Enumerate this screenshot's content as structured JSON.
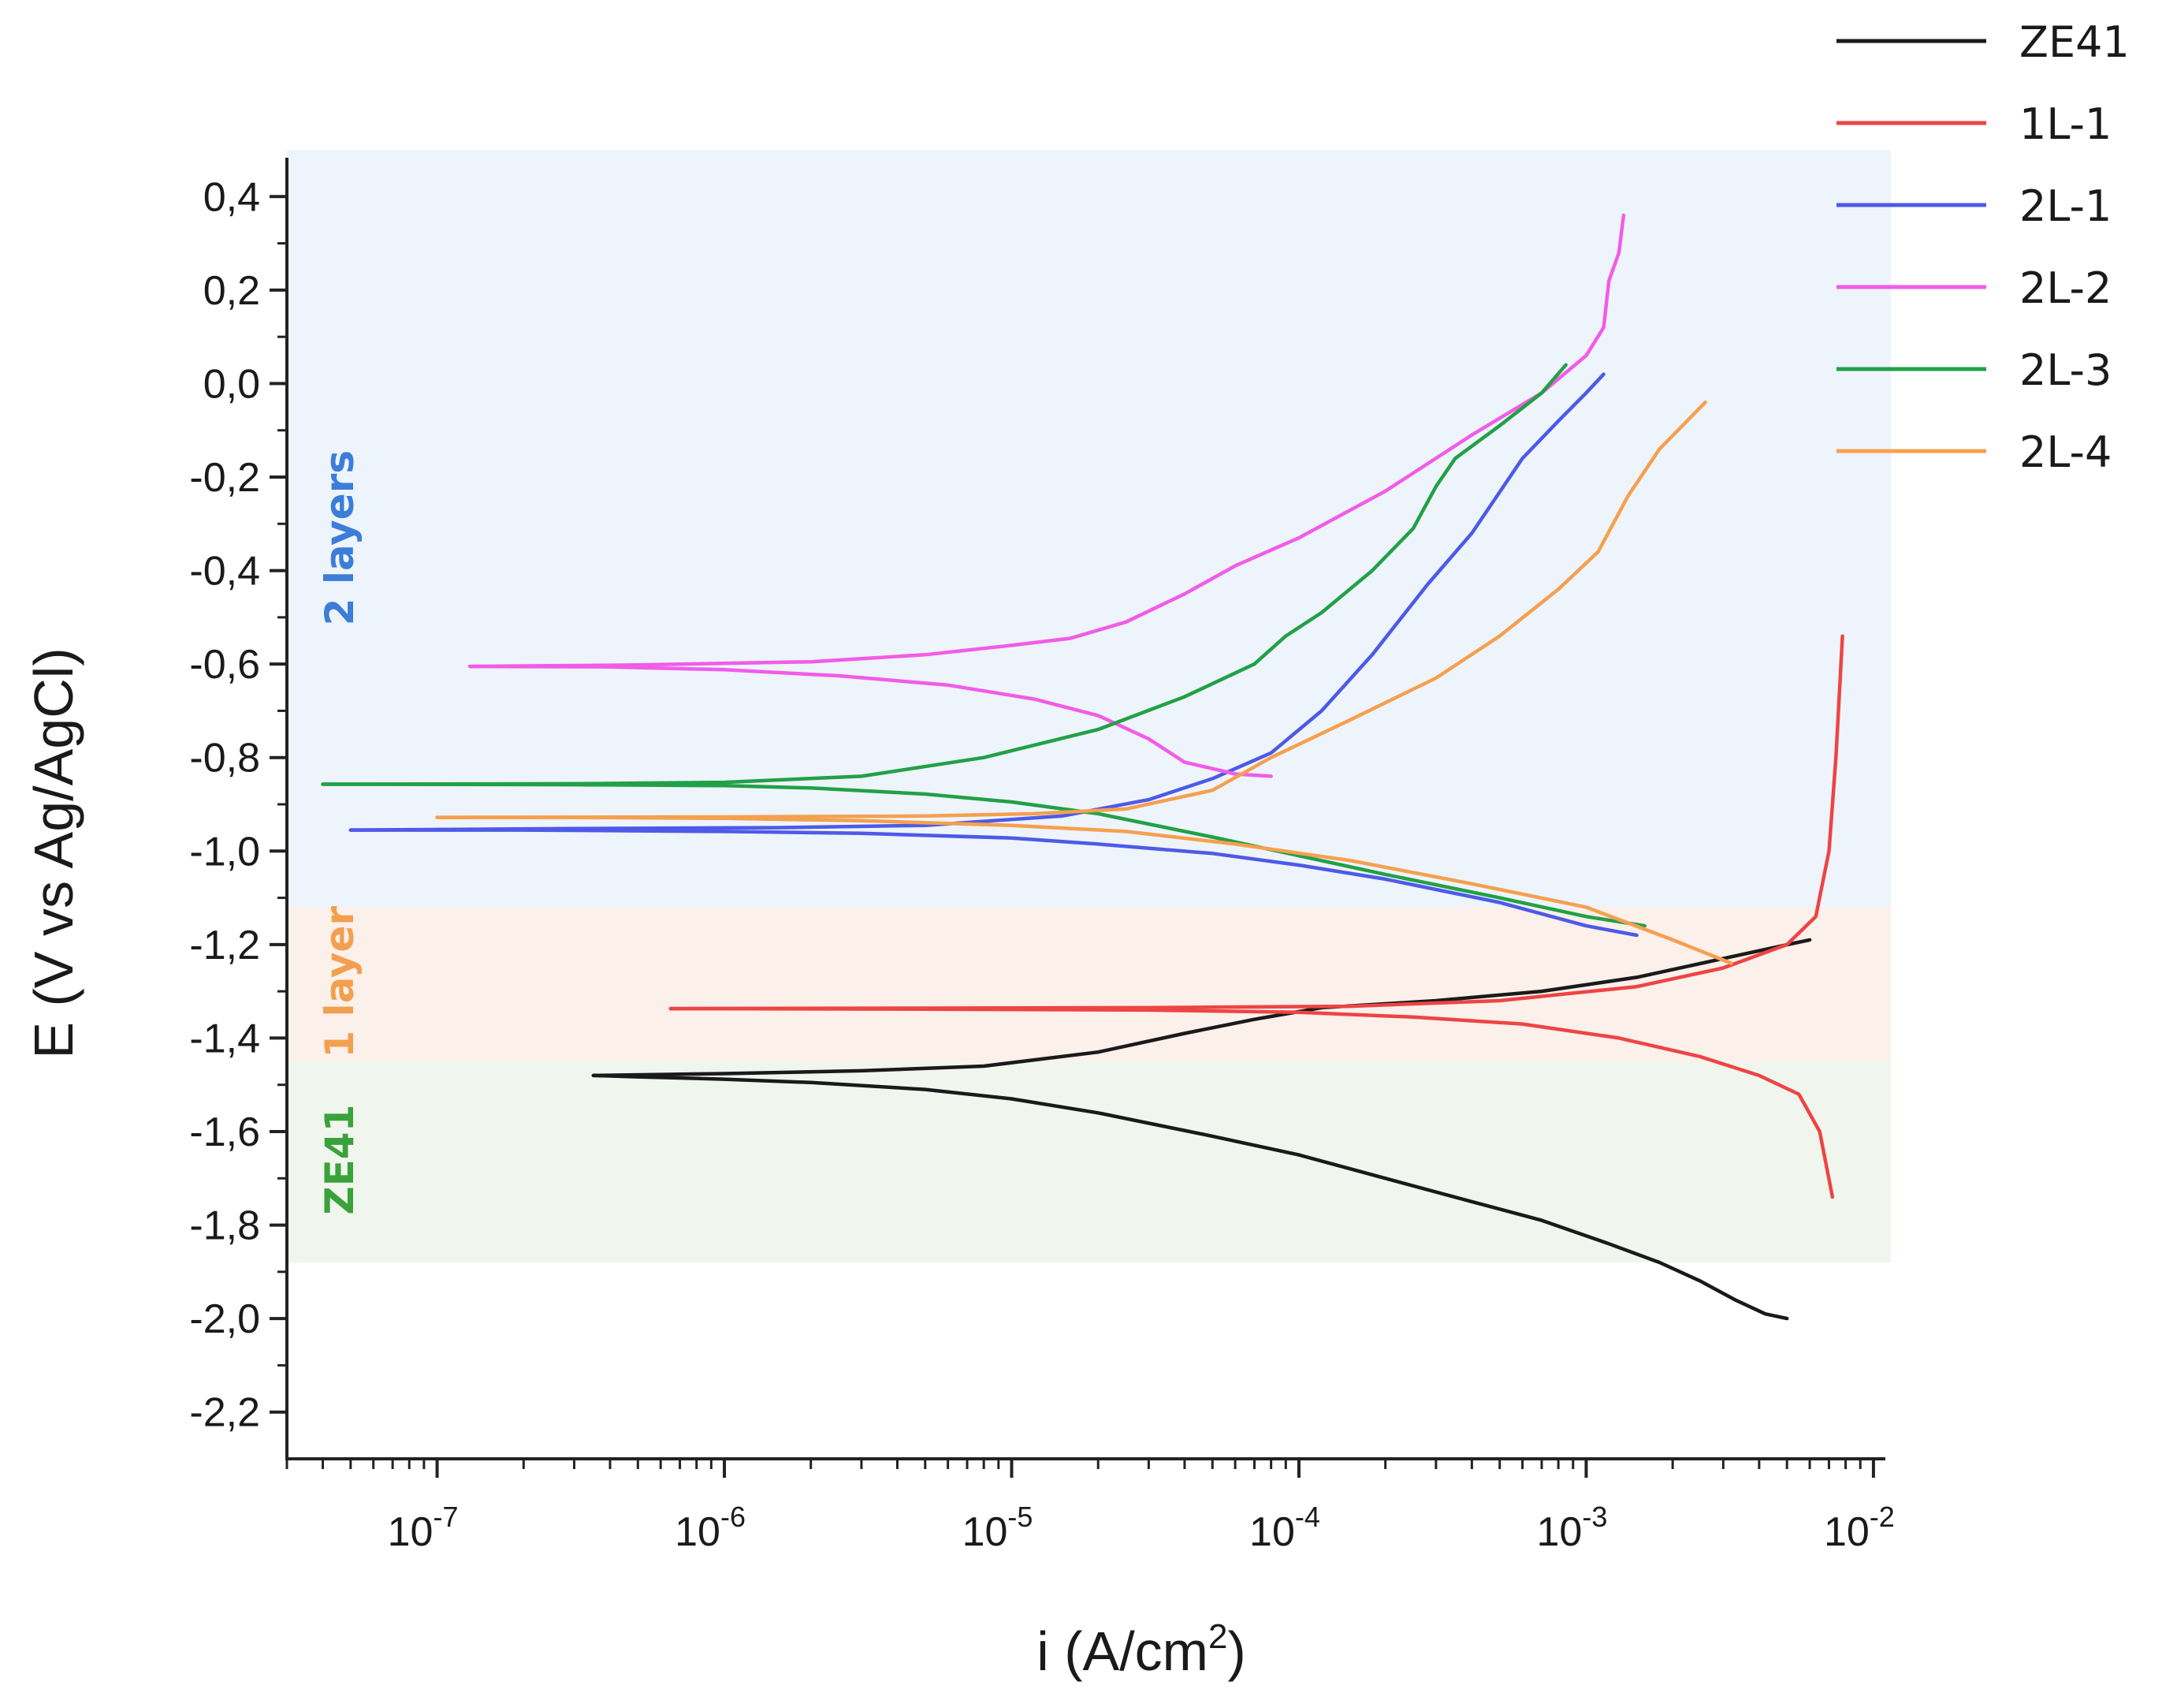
{
  "chart_data": {
    "type": "line",
    "xscale": "log",
    "xlabel": "i (A/cm²)",
    "xlabel_base": "i (A/cm",
    "xlabel_sup": "2",
    "xlabel_tail": ")",
    "ylabel": "E (V vs Ag/AgCl)",
    "xlim": [
      3e-08,
      0.011
    ],
    "ylim": [
      -2.3,
      0.5
    ],
    "x_ticks": [
      {
        "value": 1e-07,
        "base": "10",
        "exp": "-7"
      },
      {
        "value": 1e-06,
        "base": "10",
        "exp": "-6"
      },
      {
        "value": 1e-05,
        "base": "10",
        "exp": "-5"
      },
      {
        "value": 0.0001,
        "base": "10",
        "exp": "-4"
      },
      {
        "value": 0.001,
        "base": "10",
        "exp": "-3"
      },
      {
        "value": 0.01,
        "base": "10",
        "exp": "-2"
      }
    ],
    "y_ticks": [
      {
        "value": 0.4,
        "label": "0,4"
      },
      {
        "value": 0.2,
        "label": "0,2"
      },
      {
        "value": 0.0,
        "label": "0,0"
      },
      {
        "value": -0.2,
        "label": "-0,2"
      },
      {
        "value": -0.4,
        "label": "-0,4"
      },
      {
        "value": -0.6,
        "label": "-0,6"
      },
      {
        "value": -0.8,
        "label": "-0,8"
      },
      {
        "value": -1.0,
        "label": "-1,0"
      },
      {
        "value": -1.2,
        "label": "-1,2"
      },
      {
        "value": -1.4,
        "label": "-1,4"
      },
      {
        "value": -1.6,
        "label": "-1,6"
      },
      {
        "value": -1.8,
        "label": "-1,8"
      },
      {
        "value": -2.0,
        "label": "-2,0"
      },
      {
        "value": -2.2,
        "label": "-2,2"
      }
    ],
    "regions": [
      {
        "name": "2 layers",
        "y_from": -1.12,
        "y_to": 0.5,
        "fill": "#eef4fb",
        "text_color": "#3c7dd9",
        "label_y": -0.33
      },
      {
        "name": "1 layer",
        "y_from": -1.45,
        "y_to": -1.12,
        "fill": "#fcf0ea",
        "text_color": "#f2a04f",
        "label_y": -1.28
      },
      {
        "name": "ZE41",
        "y_from": -1.88,
        "y_to": -1.45,
        "fill": "#f0f6ee",
        "text_color": "#3aa23a",
        "label_y": -1.66
      }
    ],
    "region_x_to": 0.0115,
    "series": [
      {
        "name": "ZE41",
        "color": "#1a1a1a",
        "cathodic": [
          [
            0.005,
            -2.0
          ],
          [
            0.0042,
            -1.99
          ],
          [
            0.0033,
            -1.96
          ],
          [
            0.0025,
            -1.92
          ],
          [
            0.0018,
            -1.88
          ],
          [
            0.0012,
            -1.84
          ],
          [
            0.0007,
            -1.79
          ],
          [
            0.0004,
            -1.75
          ],
          [
            0.0002,
            -1.7
          ],
          [
            0.0001,
            -1.65
          ],
          [
            5e-05,
            -1.61
          ],
          [
            2e-05,
            -1.56
          ],
          [
            1e-05,
            -1.53
          ],
          [
            5e-06,
            -1.51
          ],
          [
            2e-06,
            -1.495
          ],
          [
            1e-06,
            -1.488
          ],
          [
            5e-07,
            -1.483
          ],
          [
            3.5e-07,
            -1.48
          ]
        ],
        "anodic": [
          [
            3.5e-07,
            -1.48
          ],
          [
            1e-06,
            -1.476
          ],
          [
            3e-06,
            -1.47
          ],
          [
            8e-06,
            -1.46
          ],
          [
            2e-05,
            -1.43
          ],
          [
            4e-05,
            -1.39
          ],
          [
            7e-05,
            -1.36
          ],
          [
            0.00012,
            -1.335
          ],
          [
            0.0003,
            -1.32
          ],
          [
            0.0007,
            -1.3
          ],
          [
            0.0015,
            -1.27
          ],
          [
            0.003,
            -1.23
          ],
          [
            0.006,
            -1.19
          ]
        ]
      },
      {
        "name": "1L-1",
        "color": "#ee4444",
        "cathodic": [
          [
            0.0072,
            -1.74
          ],
          [
            0.0065,
            -1.6
          ],
          [
            0.0055,
            -1.52
          ],
          [
            0.004,
            -1.48
          ],
          [
            0.0025,
            -1.44
          ],
          [
            0.0013,
            -1.4
          ],
          [
            0.0006,
            -1.37
          ],
          [
            0.00025,
            -1.355
          ],
          [
            0.0001,
            -1.345
          ],
          [
            3e-05,
            -1.34
          ],
          [
            5e-06,
            -1.338
          ],
          [
            6.5e-07,
            -1.337
          ]
        ],
        "anodic": [
          [
            6.5e-07,
            -1.337
          ],
          [
            5e-06,
            -1.336
          ],
          [
            3e-05,
            -1.335
          ],
          [
            0.00015,
            -1.332
          ],
          [
            0.0005,
            -1.32
          ],
          [
            0.0015,
            -1.29
          ],
          [
            0.003,
            -1.25
          ],
          [
            0.005,
            -1.2
          ],
          [
            0.0063,
            -1.14
          ],
          [
            0.007,
            -1.0
          ],
          [
            0.0074,
            -0.8
          ],
          [
            0.0078,
            -0.54
          ]
        ]
      },
      {
        "name": "2L-1",
        "color": "#4d5ae8",
        "cathodic": [
          [
            0.0015,
            -1.18
          ],
          [
            0.001,
            -1.16
          ],
          [
            0.0005,
            -1.11
          ],
          [
            0.0002,
            -1.06
          ],
          [
            0.0001,
            -1.03
          ],
          [
            5e-05,
            -1.005
          ],
          [
            2e-05,
            -0.985
          ],
          [
            1e-05,
            -0.972
          ],
          [
            3e-06,
            -0.962
          ],
          [
            1e-06,
            -0.958
          ],
          [
            2e-07,
            -0.955
          ],
          [
            5e-08,
            -0.955
          ]
        ],
        "anodic": [
          [
            5e-08,
            -0.955
          ],
          [
            3e-07,
            -0.952
          ],
          [
            1.5e-06,
            -0.95
          ],
          [
            5e-06,
            -0.945
          ],
          [
            1.5e-05,
            -0.925
          ],
          [
            3e-05,
            -0.89
          ],
          [
            5e-05,
            -0.845
          ],
          [
            8e-05,
            -0.79
          ],
          [
            0.00012,
            -0.7
          ],
          [
            0.00018,
            -0.58
          ],
          [
            0.00028,
            -0.43
          ],
          [
            0.0004,
            -0.32
          ],
          [
            0.0006,
            -0.16
          ],
          [
            0.0008,
            -0.08
          ],
          [
            0.001,
            -0.02
          ],
          [
            0.00115,
            0.02
          ]
        ]
      },
      {
        "name": "2L-2",
        "color": "#f15ce8",
        "cathodic": [
          [
            8e-05,
            -0.84
          ],
          [
            6e-05,
            -0.835
          ],
          [
            4e-05,
            -0.81
          ],
          [
            3e-05,
            -0.76
          ],
          [
            2e-05,
            -0.71
          ],
          [
            1.2e-05,
            -0.675
          ],
          [
            6e-06,
            -0.645
          ],
          [
            2.5e-06,
            -0.625
          ],
          [
            1e-06,
            -0.612
          ],
          [
            4e-07,
            -0.606
          ],
          [
            1.3e-07,
            -0.605
          ]
        ],
        "anodic": [
          [
            1.3e-07,
            -0.605
          ],
          [
            5e-07,
            -0.602
          ],
          [
            2e-06,
            -0.595
          ],
          [
            5e-06,
            -0.58
          ],
          [
            1e-05,
            -0.56
          ],
          [
            1.6e-05,
            -0.545
          ],
          [
            2.5e-05,
            -0.51
          ],
          [
            4e-05,
            -0.45
          ],
          [
            6e-05,
            -0.39
          ],
          [
            0.0001,
            -0.33
          ],
          [
            0.0002,
            -0.23
          ],
          [
            0.0004,
            -0.11
          ],
          [
            0.0007,
            -0.02
          ],
          [
            0.001,
            0.06
          ],
          [
            0.00115,
            0.12
          ],
          [
            0.0012,
            0.22
          ],
          [
            0.0013,
            0.28
          ],
          [
            0.00135,
            0.36
          ]
        ]
      },
      {
        "name": "2L-3",
        "color": "#22a046",
        "cathodic": [
          [
            0.0016,
            -1.16
          ],
          [
            0.001,
            -1.14
          ],
          [
            0.0005,
            -1.1
          ],
          [
            0.0002,
            -1.05
          ],
          [
            0.0001,
            -1.01
          ],
          [
            5e-05,
            -0.97
          ],
          [
            2e-05,
            -0.92
          ],
          [
            1e-05,
            -0.895
          ],
          [
            5e-06,
            -0.878
          ],
          [
            2e-06,
            -0.865
          ],
          [
            1e-06,
            -0.86
          ],
          [
            3e-07,
            -0.858
          ],
          [
            4e-08,
            -0.857
          ]
        ],
        "anodic": [
          [
            4e-08,
            -0.857
          ],
          [
            3e-07,
            -0.856
          ],
          [
            1e-06,
            -0.853
          ],
          [
            3e-06,
            -0.84
          ],
          [
            8e-06,
            -0.8
          ],
          [
            2e-05,
            -0.74
          ],
          [
            4e-05,
            -0.67
          ],
          [
            7e-05,
            -0.6
          ],
          [
            9e-05,
            -0.54
          ],
          [
            0.00012,
            -0.49
          ],
          [
            0.00018,
            -0.4
          ],
          [
            0.00025,
            -0.31
          ],
          [
            0.0003,
            -0.22
          ],
          [
            0.00035,
            -0.16
          ],
          [
            0.0005,
            -0.09
          ],
          [
            0.0007,
            -0.02
          ],
          [
            0.00085,
            0.04
          ]
        ]
      },
      {
        "name": "2L-4",
        "color": "#f5a04f",
        "cathodic": [
          [
            0.0032,
            -1.24
          ],
          [
            0.002,
            -1.19
          ],
          [
            0.001,
            -1.12
          ],
          [
            0.0004,
            -1.07
          ],
          [
            0.00015,
            -1.02
          ],
          [
            6e-05,
            -0.985
          ],
          [
            2.5e-05,
            -0.958
          ],
          [
            1e-05,
            -0.945
          ],
          [
            3e-06,
            -0.935
          ],
          [
            1e-06,
            -0.93
          ],
          [
            3e-07,
            -0.928
          ],
          [
            1e-07,
            -0.928
          ]
        ],
        "anodic": [
          [
            1e-07,
            -0.928
          ],
          [
            1e-06,
            -0.927
          ],
          [
            5e-06,
            -0.925
          ],
          [
            1.2e-05,
            -0.92
          ],
          [
            2.5e-05,
            -0.91
          ],
          [
            5e-05,
            -0.87
          ],
          [
            8e-05,
            -0.8
          ],
          [
            0.00015,
            -0.72
          ],
          [
            0.0003,
            -0.63
          ],
          [
            0.0005,
            -0.54
          ],
          [
            0.0008,
            -0.44
          ],
          [
            0.0011,
            -0.36
          ],
          [
            0.0014,
            -0.24
          ],
          [
            0.0018,
            -0.14
          ],
          [
            0.0026,
            -0.04
          ]
        ]
      }
    ],
    "legend": {
      "position": "top-right",
      "entries": [
        "ZE41",
        "1L-1",
        "2L-1",
        "2L-2",
        "2L-3",
        "2L-4"
      ]
    }
  }
}
